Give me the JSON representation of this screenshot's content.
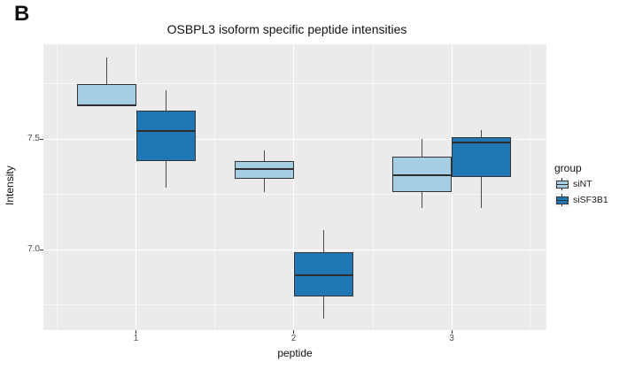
{
  "figure_label": "B",
  "title": "OSBPL3 isoform specific peptide intensities",
  "axes": {
    "x_title": "peptide",
    "y_title": "Intensity",
    "x_ticks": [
      {
        "label": "1",
        "value": 1
      },
      {
        "label": "2",
        "value": 2
      },
      {
        "label": "3",
        "value": 3
      }
    ],
    "y_ticks": [
      {
        "label": "7.5",
        "value": 7.5
      },
      {
        "label": "7.0",
        "value": 7.0
      }
    ]
  },
  "legend": {
    "title": "group",
    "items": [
      {
        "label": "siNT",
        "color": "#A6CEE3"
      },
      {
        "label": "siSF3B1",
        "color": "#1F78B4"
      }
    ]
  },
  "colors": {
    "panel_bg": "#EBEBEB",
    "gridline": "#FFFFFF",
    "box_outline": "#333333",
    "whisker": "#4a4a4a",
    "tick_label": "#4D4D4D",
    "siNT_fill": "#A6CEE3",
    "siSF3B1_fill": "#1F78B4"
  },
  "chart_data": {
    "type": "boxplot",
    "title": "OSBPL3 isoform specific peptide intensities",
    "xlabel": "peptide",
    "ylabel": "Intensity",
    "categories": [
      1,
      2,
      3
    ],
    "ylim": [
      6.64,
      7.93
    ],
    "y_major_gridlines": [
      7.0,
      7.5
    ],
    "y_minor_gridlines": [
      6.75,
      7.25,
      7.75
    ],
    "grid": true,
    "legend_position": "right",
    "series": [
      {
        "name": "siNT",
        "color": "#A6CEE3",
        "boxes": [
          {
            "x": 1,
            "min": 7.65,
            "q1": 7.65,
            "median": 7.655,
            "q3": 7.75,
            "max": 7.87
          },
          {
            "x": 2,
            "min": 7.26,
            "q1": 7.32,
            "median": 7.37,
            "q3": 7.4,
            "max": 7.45
          },
          {
            "x": 3,
            "min": 7.19,
            "q1": 7.26,
            "median": 7.34,
            "q3": 7.42,
            "max": 7.5
          }
        ]
      },
      {
        "name": "siSF3B1",
        "color": "#1F78B4",
        "boxes": [
          {
            "x": 1,
            "min": 7.28,
            "q1": 7.4,
            "median": 7.54,
            "q3": 7.63,
            "max": 7.72
          },
          {
            "x": 2,
            "min": 6.69,
            "q1": 6.79,
            "median": 6.89,
            "q3": 6.99,
            "max": 7.09
          },
          {
            "x": 3,
            "min": 7.19,
            "q1": 7.33,
            "median": 7.49,
            "q3": 7.51,
            "max": 7.54
          }
        ]
      }
    ]
  }
}
